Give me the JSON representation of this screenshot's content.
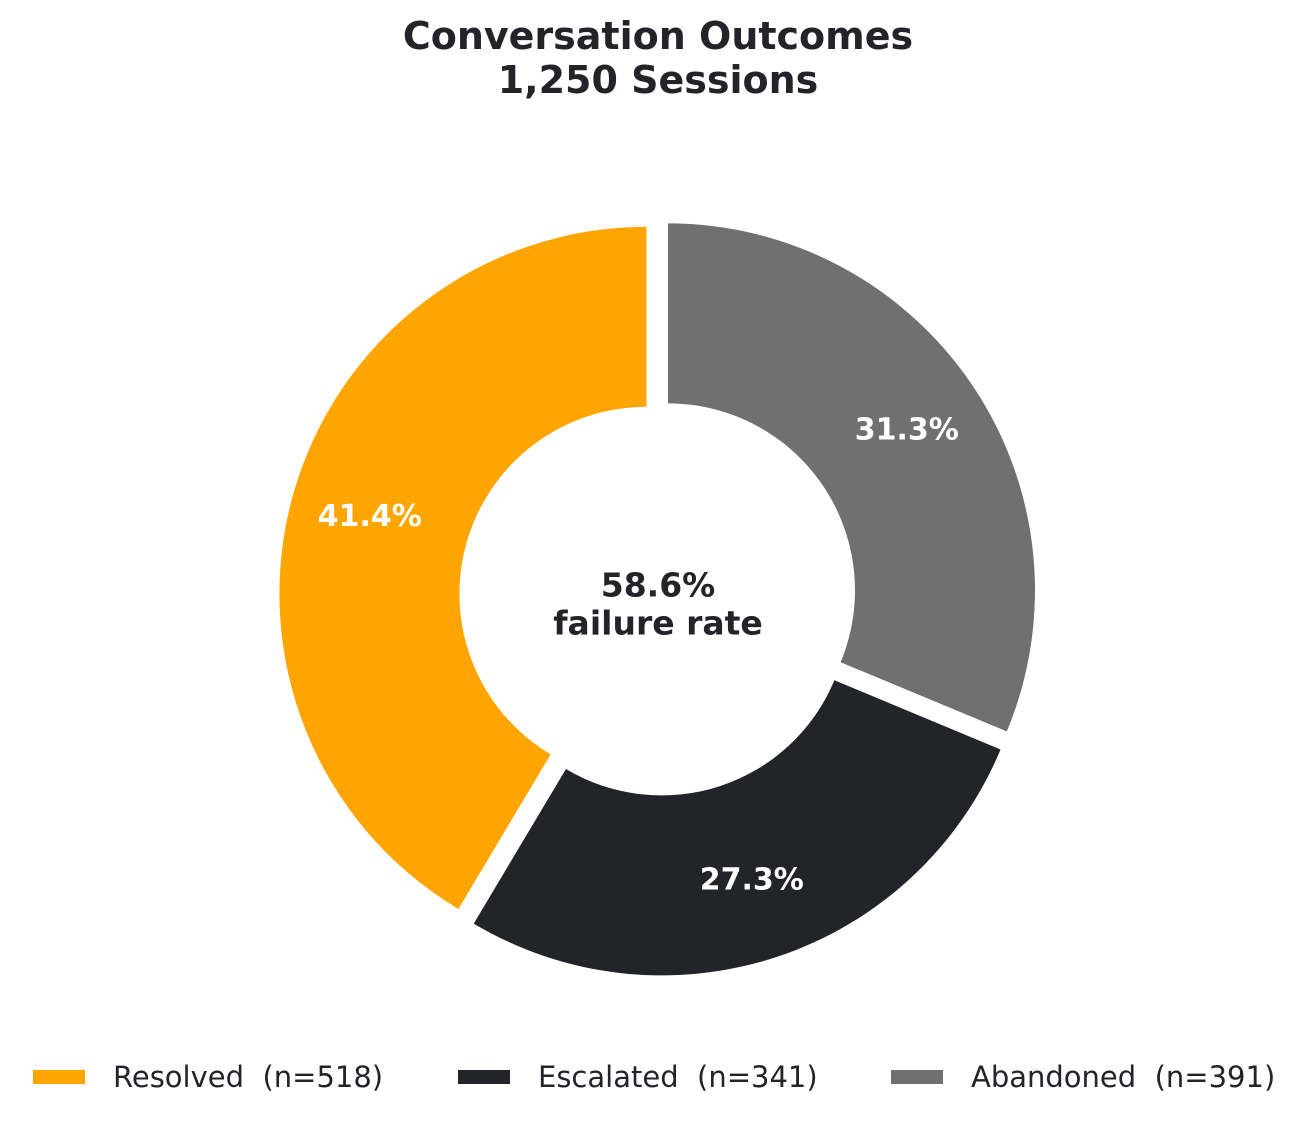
{
  "chart_data": {
    "type": "pie",
    "style": "donut",
    "title": "Conversation Outcomes",
    "subtitle": "1,250 Sessions",
    "categories": [
      "Resolved",
      "Escalated",
      "Abandoned"
    ],
    "values": [
      518,
      341,
      391
    ],
    "percent_labels": [
      "41.4%",
      "27.3%",
      "31.3%"
    ],
    "colors": [
      "#FFA500",
      "#222429",
      "#707070"
    ],
    "legend_labels": [
      "Resolved  (n=518)",
      "Escalated  (n=341)",
      "Abandoned  (n=391)"
    ],
    "legend_placement": "bottom",
    "start_angle_deg": 90,
    "direction": "counterclockwise",
    "center_text": {
      "value": "58.6%",
      "label": "failure rate"
    }
  }
}
